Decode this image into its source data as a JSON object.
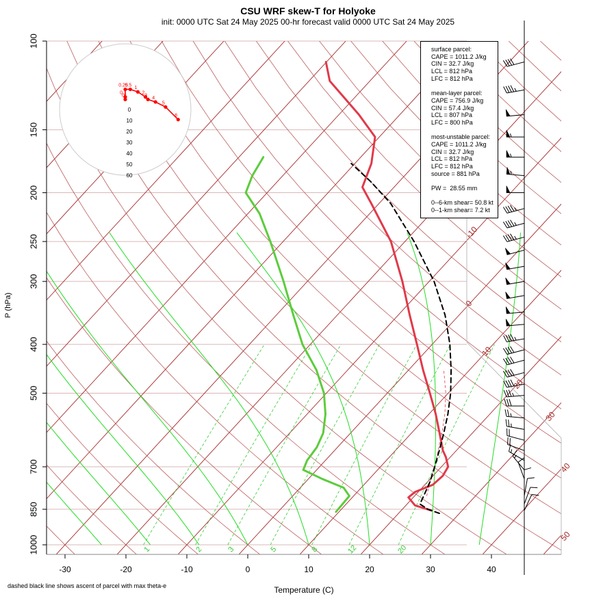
{
  "chart_data": {
    "type": "skew-t",
    "title": "CSU WRF skew-T for Holyoke",
    "subtitle": "init: 0000 UTC Sat 24 May 2025    00-hr forecast valid 0000 UTC Sat 24 May 2025",
    "xlabel": "Temperature (C)",
    "ylabel": "P (hPa)",
    "footnote": "dashed black line shows ascent of parcel with max theta-e",
    "x_ticks": [
      -30,
      -20,
      -10,
      0,
      10,
      20,
      30,
      40
    ],
    "p_ticks": [
      100,
      150,
      200,
      250,
      300,
      400,
      500,
      700,
      850,
      1000
    ],
    "xlim": [
      -33,
      51
    ],
    "plim": [
      1050,
      100
    ],
    "colors": {
      "temperature": "#e03a4a",
      "dewpoint": "#5ccc3c",
      "parcel": "#000000",
      "isotherm": "#a52a2a",
      "mixing_ratio": "#33dd33",
      "moist_adiabat": "#22dd22"
    },
    "isotherm_labels": [
      "-10",
      "0",
      "10",
      "20",
      "30",
      "40",
      "50"
    ],
    "mixing_ratio_labels": [
      "1",
      "2",
      "3",
      "5",
      "8",
      "12",
      "20"
    ],
    "temperature_profile": [
      {
        "p": 855,
        "t": 25.0
      },
      {
        "p": 835,
        "t": 21.5
      },
      {
        "p": 805,
        "t": 19.2
      },
      {
        "p": 785,
        "t": 19.5
      },
      {
        "p": 760,
        "t": 21.3
      },
      {
        "p": 730,
        "t": 21.6
      },
      {
        "p": 700,
        "t": 21.1
      },
      {
        "p": 670,
        "t": 19.3
      },
      {
        "p": 650,
        "t": 17.8
      },
      {
        "p": 600,
        "t": 14.6
      },
      {
        "p": 550,
        "t": 11.1
      },
      {
        "p": 500,
        "t": 7.0
      },
      {
        "p": 450,
        "t": 2.4
      },
      {
        "p": 400,
        "t": -2.5
      },
      {
        "p": 350,
        "t": -8.1
      },
      {
        "p": 300,
        "t": -14.4
      },
      {
        "p": 250,
        "t": -22.3
      },
      {
        "p": 210,
        "t": -31.3
      },
      {
        "p": 195,
        "t": -35.2
      },
      {
        "p": 175,
        "t": -37.3
      },
      {
        "p": 155,
        "t": -40.7
      },
      {
        "p": 140,
        "t": -46.7
      },
      {
        "p": 120,
        "t": -56.6
      },
      {
        "p": 110,
        "t": -60.1
      }
    ],
    "dewpoint_profile": [
      {
        "p": 860,
        "t": 9.5
      },
      {
        "p": 830,
        "t": 9.4
      },
      {
        "p": 800,
        "t": 9.3
      },
      {
        "p": 770,
        "t": 7.1
      },
      {
        "p": 740,
        "t": 2.3
      },
      {
        "p": 710,
        "t": -2.2
      },
      {
        "p": 680,
        "t": -3.0
      },
      {
        "p": 640,
        "t": -3.4
      },
      {
        "p": 600,
        "t": -4.5
      },
      {
        "p": 550,
        "t": -7.0
      },
      {
        "p": 500,
        "t": -10.4
      },
      {
        "p": 450,
        "t": -15.1
      },
      {
        "p": 400,
        "t": -21.3
      },
      {
        "p": 350,
        "t": -27.2
      },
      {
        "p": 300,
        "t": -33.9
      },
      {
        "p": 250,
        "t": -42.1
      },
      {
        "p": 220,
        "t": -48.1
      },
      {
        "p": 200,
        "t": -53.5
      },
      {
        "p": 185,
        "t": -55.0
      },
      {
        "p": 170,
        "t": -56.0
      }
    ],
    "parcel_profile": [
      {
        "p": 866,
        "t": 26.7
      },
      {
        "p": 850,
        "t": 24.2
      },
      {
        "p": 830,
        "t": 22.1
      },
      {
        "p": 800,
        "t": 21.5
      },
      {
        "p": 750,
        "t": 20.4
      },
      {
        "p": 700,
        "t": 18.9
      },
      {
        "p": 650,
        "t": 17.2
      },
      {
        "p": 600,
        "t": 15.3
      },
      {
        "p": 550,
        "t": 13.1
      },
      {
        "p": 500,
        "t": 10.4
      },
      {
        "p": 450,
        "t": 7.0
      },
      {
        "p": 400,
        "t": 2.9
      },
      {
        "p": 350,
        "t": -2.3
      },
      {
        "p": 300,
        "t": -9.2
      },
      {
        "p": 250,
        "t": -18.5
      },
      {
        "p": 210,
        "t": -28.1
      },
      {
        "p": 190,
        "t": -34.7
      },
      {
        "p": 175,
        "t": -40.6
      }
    ],
    "wind_barbs": [
      {
        "p": 110,
        "dir": 255,
        "spd": 40
      },
      {
        "p": 125,
        "dir": 260,
        "spd": 45
      },
      {
        "p": 140,
        "dir": 265,
        "spd": 50
      },
      {
        "p": 155,
        "dir": 270,
        "spd": 55
      },
      {
        "p": 170,
        "dir": 270,
        "spd": 55
      },
      {
        "p": 185,
        "dir": 275,
        "spd": 55
      },
      {
        "p": 200,
        "dir": 270,
        "spd": 50
      },
      {
        "p": 215,
        "dir": 255,
        "spd": 45
      },
      {
        "p": 230,
        "dir": 255,
        "spd": 45
      },
      {
        "p": 245,
        "dir": 255,
        "spd": 45
      },
      {
        "p": 260,
        "dir": 255,
        "spd": 50
      },
      {
        "p": 280,
        "dir": 260,
        "spd": 50
      },
      {
        "p": 300,
        "dir": 260,
        "spd": 50
      },
      {
        "p": 320,
        "dir": 260,
        "spd": 50
      },
      {
        "p": 345,
        "dir": 265,
        "spd": 50
      },
      {
        "p": 365,
        "dir": 265,
        "spd": 50
      },
      {
        "p": 390,
        "dir": 260,
        "spd": 45
      },
      {
        "p": 410,
        "dir": 255,
        "spd": 40
      },
      {
        "p": 430,
        "dir": 255,
        "spd": 40
      },
      {
        "p": 455,
        "dir": 255,
        "spd": 40
      },
      {
        "p": 480,
        "dir": 260,
        "spd": 40
      },
      {
        "p": 505,
        "dir": 265,
        "spd": 35
      },
      {
        "p": 530,
        "dir": 270,
        "spd": 30
      },
      {
        "p": 560,
        "dir": 275,
        "spd": 25
      },
      {
        "p": 590,
        "dir": 280,
        "spd": 25
      },
      {
        "p": 620,
        "dir": 285,
        "spd": 20
      },
      {
        "p": 650,
        "dir": 290,
        "spd": 20
      },
      {
        "p": 680,
        "dir": 300,
        "spd": 15
      },
      {
        "p": 710,
        "dir": 320,
        "spd": 15
      },
      {
        "p": 740,
        "dir": 340,
        "spd": 10
      },
      {
        "p": 770,
        "dir": 0,
        "spd": 10
      },
      {
        "p": 800,
        "dir": 10,
        "spd": 10
      },
      {
        "p": 830,
        "dir": 20,
        "spd": 10
      },
      {
        "p": 855,
        "dir": 25,
        "spd": 10
      }
    ],
    "hodograph": {
      "ring_labels": [
        "0",
        "10",
        "20",
        "30",
        "40",
        "50",
        "60"
      ],
      "points": [
        {
          "label": "6",
          "u": 21,
          "v": -4
        },
        {
          "label": "5",
          "u": 16,
          "v": 1
        },
        {
          "label": "4",
          "u": 12,
          "v": 3
        },
        {
          "label": "3",
          "u": 9,
          "v": 4
        },
        {
          "label": "2",
          "u": 8,
          "v": 5
        },
        {
          "label": "1",
          "u": 5,
          "v": 7
        },
        {
          "label": "0.5",
          "u": 2,
          "v": 8
        },
        {
          "label": "0.25",
          "u": 0,
          "v": 8
        },
        {
          "label": "0.1",
          "u": 0,
          "v": 5
        },
        {
          "label": "0",
          "u": 0,
          "v": 4
        }
      ]
    }
  },
  "info_box": {
    "lines": [
      "surface parcel:",
      "CAPE = 1011.2 J/kg",
      "CIN = 32.7 J/kg",
      "LCL = 812 hPa",
      "LFC = 812 hPa",
      "",
      "mean-layer parcel:",
      "CAPE = 756.9 J/kg",
      "CIN = 57.4 J/kg",
      "LCL = 807 hPa",
      "LFC = 800 hPa",
      "",
      "most-unstable parcel:",
      "CAPE = 1011.2 J/kg",
      "CIN = 32.7 J/kg",
      "LCL = 812 hPa",
      "LFC = 812 hPa",
      "source = 881 hPa",
      "",
      "PW =  28.55 mm",
      "",
      "0--6-km shear= 50.8 kt",
      "0--1-km shear= 7.2 kt"
    ]
  }
}
